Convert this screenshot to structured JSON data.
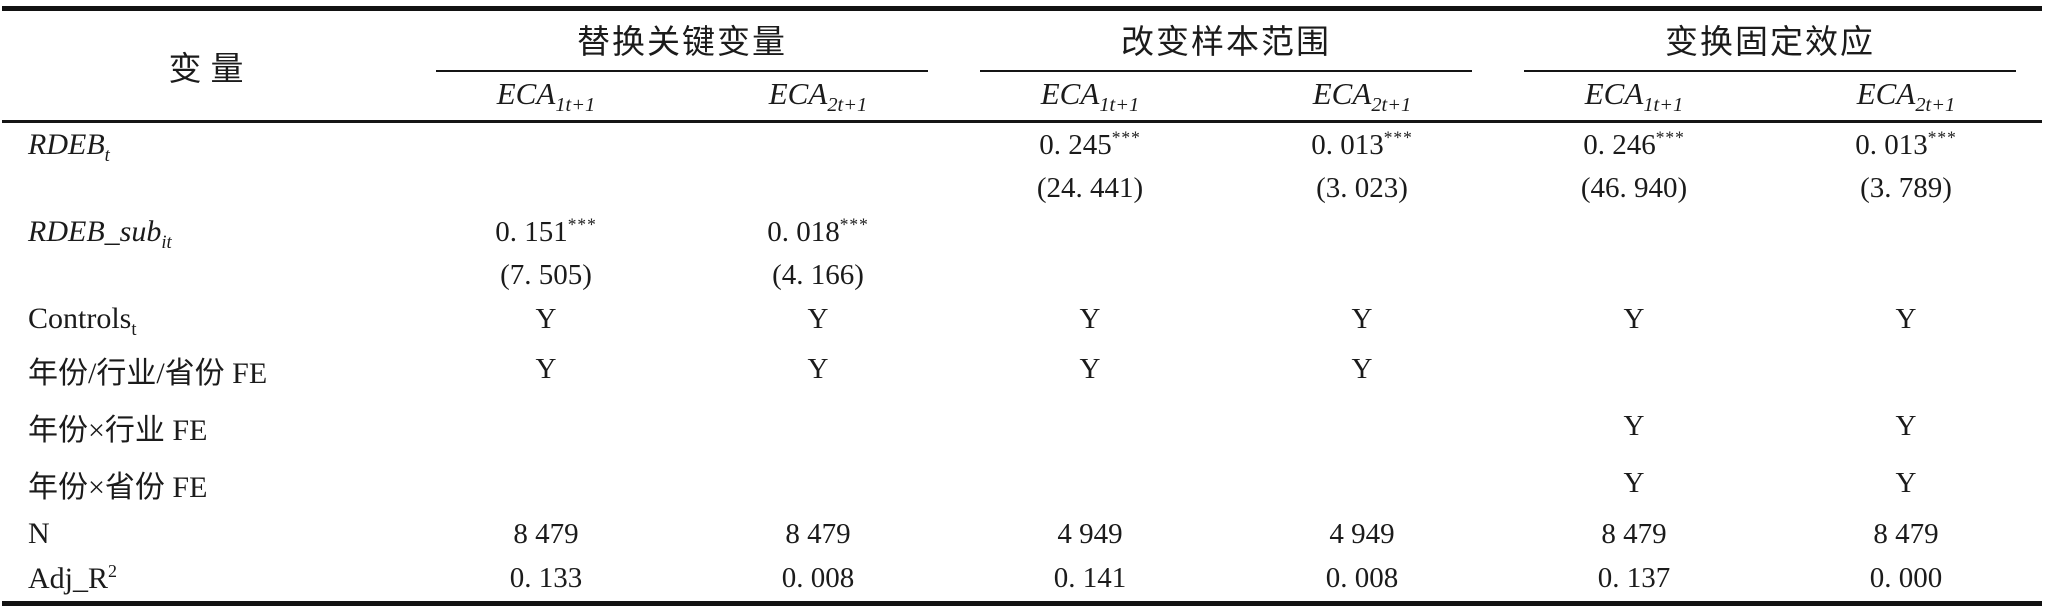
{
  "table": {
    "variable_header": "变量",
    "groups": [
      {
        "title": "替换关键变量",
        "columns": [
          "ECA_{1t+1}",
          "ECA_{2t+1}"
        ]
      },
      {
        "title": "改变样本范围",
        "columns": [
          "ECA_{1t+1}",
          "ECA_{2t+1}"
        ]
      },
      {
        "title": "变换固定效应",
        "columns": [
          "ECA_{1t+1}",
          "ECA_{2t+1}"
        ]
      }
    ],
    "rows": [
      {
        "label": "RDEB_{t}",
        "italic": true,
        "cells": [
          "",
          "",
          "0. 245^{***}",
          "0. 013^{***}",
          "0. 246^{***}",
          "0. 013^{***}"
        ]
      },
      {
        "label": "",
        "italic": false,
        "cells": [
          "",
          "",
          "(24. 441)",
          "(3. 023)",
          "(46. 940)",
          "(3. 789)"
        ]
      },
      {
        "label": "RDEB_sub_{it}",
        "italic": true,
        "cells": [
          "0. 151^{***}",
          "0. 018^{***}",
          "",
          "",
          "",
          ""
        ]
      },
      {
        "label": "",
        "italic": false,
        "cells": [
          "(7. 505)",
          "(4. 166)",
          "",
          "",
          "",
          ""
        ]
      },
      {
        "label": "Controls_{t}",
        "italic": false,
        "cells": [
          "Y",
          "Y",
          "Y",
          "Y",
          "Y",
          "Y"
        ]
      },
      {
        "label": "年份/行业/省份 FE",
        "italic": false,
        "cells": [
          "Y",
          "Y",
          "Y",
          "Y",
          "",
          ""
        ]
      },
      {
        "label": "年份×行业 FE",
        "italic": false,
        "cells": [
          "",
          "",
          "",
          "",
          "Y",
          "Y"
        ]
      },
      {
        "label": "年份×省份 FE",
        "italic": false,
        "cells": [
          "",
          "",
          "",
          "",
          "Y",
          "Y"
        ]
      },
      {
        "label": "N",
        "italic": false,
        "cells": [
          "8 479",
          "8 479",
          "4 949",
          "4 949",
          "8 479",
          "8 479"
        ]
      },
      {
        "label": "Adj_R^{2}",
        "italic": false,
        "cells": [
          "0. 133",
          "0. 008",
          "0. 141",
          "0. 008",
          "0. 137",
          "0. 000"
        ]
      }
    ]
  }
}
